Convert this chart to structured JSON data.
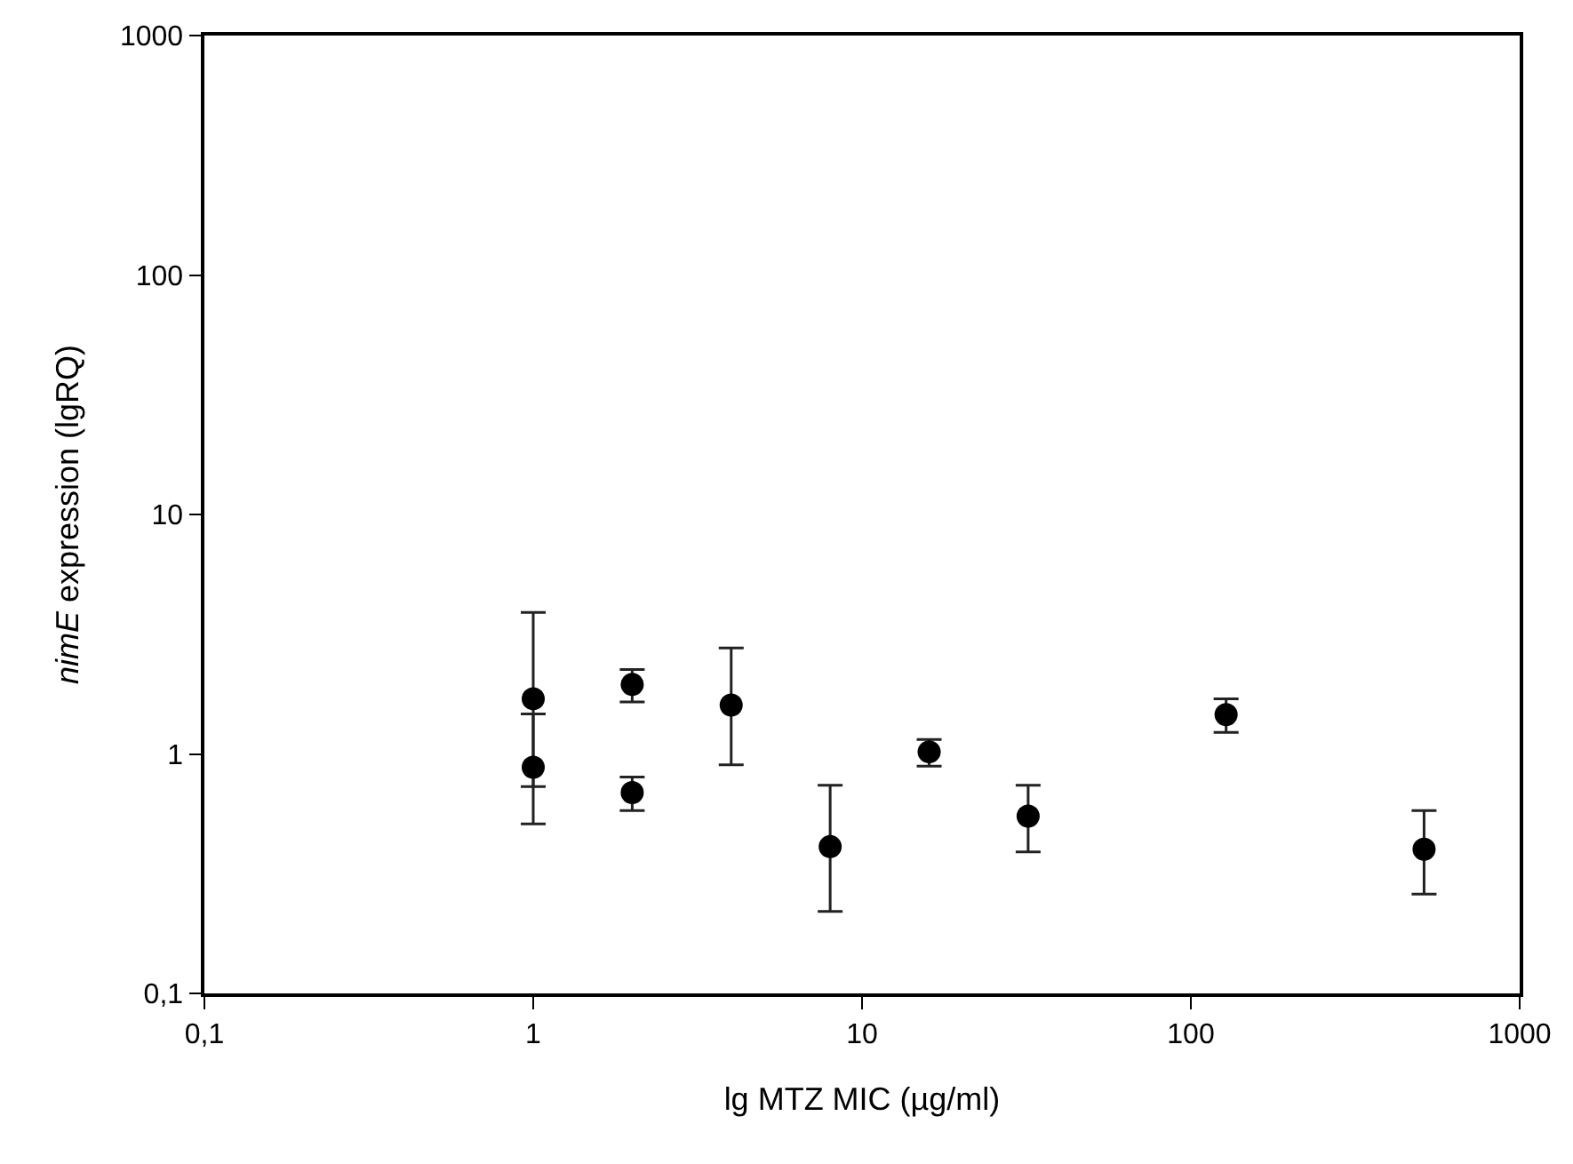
{
  "chart_data": {
    "type": "scatter",
    "xlabel": "lg MTZ MIC (µg/ml)",
    "ylabel": "nimE expression (lgRQ)",
    "x": [
      1,
      1,
      2,
      2,
      4,
      8,
      16,
      32,
      128,
      512
    ],
    "values": [
      1.7,
      0.88,
      1.95,
      0.69,
      1.6,
      0.41,
      1.02,
      0.55,
      1.46,
      0.4
    ],
    "errors": [
      [
        0.73,
        3.9
      ],
      [
        0.51,
        1.47
      ],
      [
        1.65,
        2.25
      ],
      [
        0.58,
        0.8
      ],
      [
        0.9,
        2.77
      ],
      [
        0.22,
        0.74
      ],
      [
        0.89,
        1.15
      ],
      [
        0.39,
        0.74
      ],
      [
        1.23,
        1.7
      ],
      [
        0.26,
        0.58
      ]
    ],
    "color": "#000000",
    "marker": "circle",
    "log": "xy",
    "xlim": [
      0.1,
      1000
    ],
    "ylim": [
      0.1,
      1000
    ],
    "xticks": [
      {
        "value": 0.1,
        "label": "0,1"
      },
      1,
      10,
      100,
      1000
    ],
    "yticks": [
      {
        "value": 0.1,
        "label": "0,1"
      },
      1,
      10,
      100,
      1000
    ]
  }
}
